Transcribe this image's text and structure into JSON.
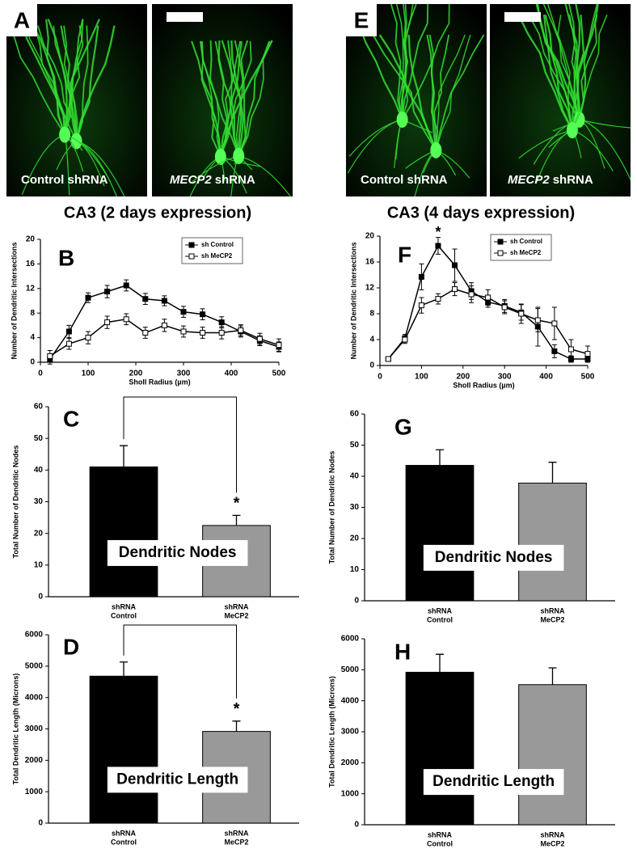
{
  "images": [
    {
      "letter": "A",
      "left_label": "Control shRNA",
      "right_gene": "MECP2",
      "right_label": "shRNA",
      "caption": "CA3 (2 days expression)"
    },
    {
      "letter": "E",
      "left_label": "Control shRNA",
      "right_gene": "MECP2",
      "right_label": "shRNA",
      "caption": "CA3 (4 days expression)"
    }
  ],
  "chart_data": [
    {
      "type": "line",
      "panel": "B",
      "xlabel": "Sholl Radius (µm)",
      "ylabel": "Number of Dendritic Intersections",
      "x": [
        20,
        60,
        100,
        140,
        180,
        220,
        260,
        300,
        340,
        380,
        420,
        460,
        500
      ],
      "series": [
        {
          "name": "sh Control",
          "color": "#000000",
          "marker": "filled",
          "values": [
            0.5,
            5,
            10.5,
            11.5,
            12.5,
            10.3,
            10,
            8.2,
            7.8,
            6.5,
            5,
            3.5,
            2.5
          ],
          "errors": [
            0.8,
            1,
            0.8,
            1,
            0.9,
            0.9,
            0.8,
            0.9,
            0.9,
            0.9,
            0.9,
            0.8,
            0.8
          ]
        },
        {
          "name": "sh MeCP2",
          "color": "#000000",
          "marker": "open",
          "values": [
            1,
            3,
            4,
            6.5,
            7,
            4.8,
            6,
            5,
            4.8,
            4.8,
            5.2,
            3.8,
            2.8
          ],
          "errors": [
            0.9,
            0.9,
            1,
            1,
            0.9,
            0.9,
            1,
            0.9,
            0.9,
            1,
            0.9,
            0.9,
            1
          ]
        }
      ],
      "xlim": [
        0,
        500
      ],
      "xticks": [
        0,
        100,
        200,
        300,
        400,
        500
      ],
      "ylim": [
        0,
        20
      ],
      "yticks": [
        0,
        4,
        8,
        12,
        16,
        20
      ],
      "legend": "top-right"
    },
    {
      "type": "line",
      "panel": "F",
      "xlabel": "Sholl Radius (µm)",
      "ylabel": "Number of Dendritic Intersections",
      "x": [
        20,
        60,
        100,
        140,
        180,
        220,
        260,
        300,
        340,
        380,
        420,
        460,
        500
      ],
      "series": [
        {
          "name": "sh Control",
          "color": "#000000",
          "marker": "filled",
          "values": [
            1,
            4.2,
            13.7,
            18.5,
            15.5,
            11.5,
            9.8,
            9.2,
            8.2,
            6,
            2.2,
            1,
            1
          ],
          "errors": [
            0.3,
            0.6,
            2,
            1.3,
            2.5,
            1.3,
            0.8,
            1,
            1.2,
            3,
            1,
            0.5,
            0.5
          ]
        },
        {
          "name": "sh MeCP2",
          "color": "#000000",
          "marker": "open",
          "values": [
            1,
            4,
            9.3,
            10.3,
            11.8,
            11,
            10.5,
            9,
            8,
            7,
            6.5,
            2.5,
            1.8
          ],
          "errors": [
            0.3,
            0.6,
            1.2,
            0.8,
            1,
            1.3,
            1.2,
            1,
            1.5,
            1.8,
            2.5,
            1.5,
            1.2
          ]
        }
      ],
      "annotations": [
        {
          "text": "*",
          "x": 140,
          "y": 20.5
        }
      ],
      "xlim": [
        0,
        500
      ],
      "xticks": [
        0,
        100,
        200,
        300,
        400,
        500
      ],
      "ylim": [
        0,
        20
      ],
      "yticks": [
        0,
        4,
        8,
        12,
        16,
        20
      ],
      "legend": "top-right"
    },
    {
      "type": "bar",
      "panel": "C",
      "ylabel": "Total Number of Dendritic Nodes",
      "inset_label": "Dendritic Nodes",
      "significance": "*",
      "categories": [
        [
          "shRNA",
          "Control"
        ],
        [
          "shRNA",
          "MeCP2"
        ]
      ],
      "values": [
        41,
        22.5
      ],
      "errors": [
        6.7,
        3.2
      ],
      "colors": [
        "#000000",
        "#999999"
      ],
      "ylim": [
        0,
        60
      ],
      "yticks": [
        0,
        10,
        20,
        30,
        40,
        50,
        60
      ]
    },
    {
      "type": "bar",
      "panel": "G",
      "ylabel": "Total Number of Dendritic Nodes",
      "inset_label": "Dendritic Nodes",
      "categories": [
        [
          "shRNA",
          "Control"
        ],
        [
          "shRNA",
          "MeCP2"
        ]
      ],
      "values": [
        43.5,
        37.8
      ],
      "errors": [
        5,
        6.7
      ],
      "colors": [
        "#000000",
        "#999999"
      ],
      "ylim": [
        0,
        60
      ],
      "yticks": [
        0,
        10,
        20,
        30,
        40,
        50,
        60
      ]
    },
    {
      "type": "bar",
      "panel": "D",
      "ylabel": "Total Dendritic Length (Microns)",
      "inset_label": "Dendritic Length",
      "significance": "*",
      "categories": [
        [
          "shRNA",
          "Control"
        ],
        [
          "shRNA",
          "MeCP2"
        ]
      ],
      "values": [
        4680,
        2920
      ],
      "errors": [
        450,
        330
      ],
      "colors": [
        "#000000",
        "#999999"
      ],
      "ylim": [
        0,
        6000
      ],
      "yticks": [
        0,
        1000,
        2000,
        3000,
        4000,
        5000,
        6000
      ]
    },
    {
      "type": "bar",
      "panel": "H",
      "ylabel": "Total Dendritic Length (Microns)",
      "inset_label": "Dendritic Length",
      "categories": [
        [
          "shRNA",
          "Control"
        ],
        [
          "shRNA",
          "MeCP2"
        ]
      ],
      "values": [
        4920,
        4520
      ],
      "errors": [
        580,
        540
      ],
      "colors": [
        "#000000",
        "#999999"
      ],
      "ylim": [
        0,
        6000
      ],
      "yticks": [
        0,
        1000,
        2000,
        3000,
        4000,
        5000,
        6000
      ]
    }
  ]
}
